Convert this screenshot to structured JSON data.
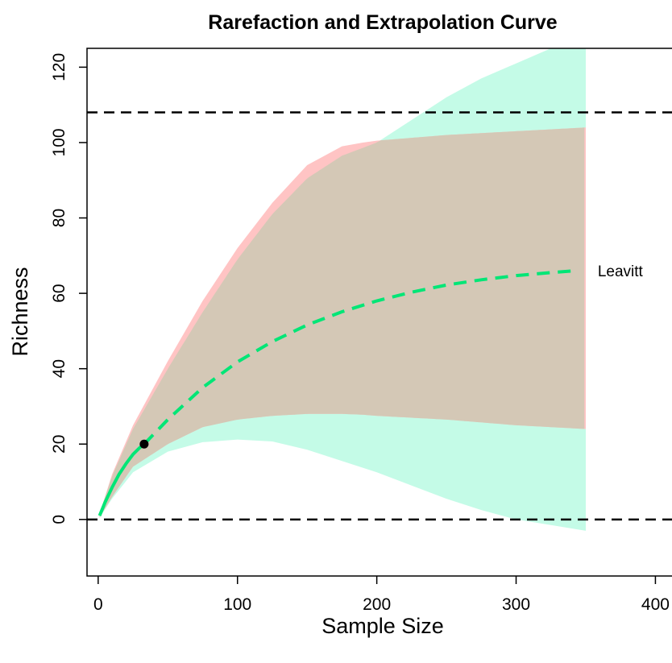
{
  "chart_data": {
    "type": "area",
    "title": "Rarefaction and Extrapolation Curve",
    "xlabel": "Sample Size",
    "ylabel": "Richness",
    "xlim": [
      -8,
      420
    ],
    "ylim": [
      -15,
      125
    ],
    "x_ticks": [
      0,
      100,
      200,
      300,
      400
    ],
    "y_ticks": [
      0,
      20,
      40,
      60,
      80,
      100,
      120
    ],
    "grid": false,
    "legend": "none",
    "reference_lines": [
      {
        "y": 108,
        "style": "dashed",
        "color": "#000000"
      },
      {
        "y": 0,
        "style": "dashed",
        "color": "#000000"
      }
    ],
    "series": [
      {
        "name": "Leavitt",
        "color": "#00E676",
        "observed_point": {
          "x": 33,
          "y": 20
        },
        "interpolated": {
          "x": [
            1,
            5,
            10,
            15,
            20,
            25,
            30,
            33
          ],
          "y": [
            1,
            4.6,
            8.5,
            12,
            14.8,
            17.3,
            19.1,
            20
          ]
        },
        "extrapolated": {
          "x": [
            33,
            50,
            75,
            100,
            125,
            150,
            175,
            200,
            225,
            250,
            275,
            300,
            325,
            343
          ],
          "y": [
            20,
            26.5,
            35,
            41.8,
            47.2,
            51.6,
            55.1,
            58,
            60.3,
            62.2,
            63.6,
            64.7,
            65.5,
            66
          ]
        },
        "ci_red": {
          "x": [
            1,
            10,
            25,
            50,
            75,
            100,
            125,
            150,
            175,
            190,
            200,
            250,
            300,
            350
          ],
          "upper": [
            1.5,
            12,
            25,
            42,
            58,
            72,
            84,
            94,
            99,
            100,
            100.5,
            102,
            103,
            104
          ],
          "lower": [
            0.5,
            6,
            14,
            20,
            24.5,
            26.5,
            27.5,
            28,
            28,
            27.8,
            27.5,
            26.5,
            25,
            24
          ]
        },
        "ci_green": {
          "x": [
            1,
            10,
            25,
            50,
            75,
            100,
            125,
            150,
            175,
            200,
            225,
            250,
            275,
            300,
            325,
            350
          ],
          "upper": [
            1.5,
            11.5,
            24,
            40,
            55,
            69,
            81,
            90.5,
            96.5,
            100,
            106,
            112,
            117,
            121,
            125,
            128
          ],
          "lower": [
            0.5,
            5.5,
            12.5,
            18,
            20.5,
            21.2,
            20.7,
            18.5,
            15.5,
            12.5,
            9,
            5.5,
            2.5,
            0,
            -1.5,
            -3
          ]
        }
      }
    ],
    "colors": {
      "ci_green_fill": "#C4FBE7",
      "ci_red_fill": "#FFC4C4",
      "ci_overlap_fill": "#D4C8B6",
      "curve": "#00E676",
      "point": "#000000"
    }
  }
}
